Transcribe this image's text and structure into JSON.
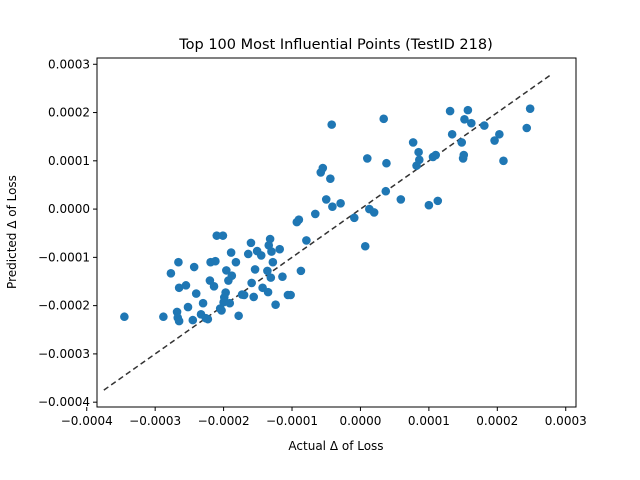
{
  "chart_data": {
    "type": "scatter",
    "title": "Top 100 Most Influential Points (TestID 218)",
    "xlabel": "Actual Δ of Loss",
    "ylabel": "Predicted Δ of Loss",
    "xlim": [
      -0.000385,
      0.000315
    ],
    "ylim": [
      -0.00041,
      0.000313
    ],
    "xticks": [
      -0.0004,
      -0.0003,
      -0.0002,
      -0.0001,
      0.0,
      0.0001,
      0.0002,
      0.0003
    ],
    "xtick_labels": [
      "−0.0004",
      "−0.0003",
      "−0.0002",
      "−0.0001",
      "0.0000",
      "0.0001",
      "0.0002",
      "0.0003"
    ],
    "yticks": [
      -0.0004,
      -0.0003,
      -0.0002,
      -0.0001,
      0.0,
      0.0001,
      0.0002,
      0.0003
    ],
    "ytick_labels": [
      "−0.0004",
      "−0.0003",
      "−0.0002",
      "−0.0001",
      "0.0000",
      "0.0001",
      "0.0002",
      "0.0003"
    ],
    "grid": false,
    "point_color": "#1f77b4",
    "reference_line": {
      "style": "dashed",
      "color": "#333333",
      "from": [
        -0.000375,
        -0.000375
      ],
      "to": [
        0.00028,
        0.00028
      ]
    },
    "points": [
      [
        -0.000345,
        -0.000223
      ],
      [
        -0.000288,
        -0.000223
      ],
      [
        -0.000277,
        -0.000133
      ],
      [
        -0.000268,
        -0.000213
      ],
      [
        -0.000267,
        -0.000225
      ],
      [
        -0.000265,
        -0.000232
      ],
      [
        -0.000266,
        -0.00011
      ],
      [
        -0.000265,
        -0.000163
      ],
      [
        -0.000255,
        -0.000158
      ],
      [
        -0.000252,
        -0.000203
      ],
      [
        -0.000245,
        -0.00023
      ],
      [
        -0.000243,
        -0.00012
      ],
      [
        -0.00024,
        -0.000175
      ],
      [
        -0.000233,
        -0.000218
      ],
      [
        -0.00023,
        -0.000195
      ],
      [
        -0.000226,
        -0.000226
      ],
      [
        -0.000223,
        -0.000228
      ],
      [
        -0.00022,
        -0.000148
      ],
      [
        -0.000219,
        -0.00011
      ],
      [
        -0.000214,
        -0.00016
      ],
      [
        -0.000212,
        -0.000108
      ],
      [
        -0.00021,
        -5.5e-05
      ],
      [
        -0.000205,
        -0.000206
      ],
      [
        -0.000201,
        -5.5e-05
      ],
      [
        -0.0002,
        -0.000193
      ],
      [
        -0.000199,
        -0.000183
      ],
      [
        -0.000197,
        -0.000173
      ],
      [
        -0.000196,
        -0.000127
      ],
      [
        -0.000193,
        -0.000148
      ],
      [
        -0.000191,
        -0.000195
      ],
      [
        -0.000189,
        -9e-05
      ],
      [
        -0.000188,
        -0.000138
      ],
      [
        -0.000182,
        -0.00011
      ],
      [
        -0.000178,
        -0.000221
      ],
      [
        -0.000173,
        -0.000177
      ],
      [
        -0.000164,
        -9.3e-05
      ],
      [
        -0.00016,
        -7e-05
      ],
      [
        -0.000159,
        -0.000153
      ],
      [
        -0.000156,
        -0.000182
      ],
      [
        -0.000154,
        -0.000125
      ],
      [
        -0.000151,
        -8.7e-05
      ],
      [
        -0.000145,
        -9.6e-05
      ],
      [
        -0.000143,
        -0.000163
      ],
      [
        -0.000136,
        -0.000128
      ],
      [
        -0.000135,
        -0.000172
      ],
      [
        -0.000134,
        -7.5e-05
      ],
      [
        -0.000132,
        -6.2e-05
      ],
      [
        -0.000131,
        -0.000142
      ],
      [
        -0.00013,
        -8.8e-05
      ],
      [
        -0.000128,
        -0.00011
      ],
      [
        -0.000124,
        -0.000198
      ],
      [
        -0.000118,
        -8.3e-05
      ],
      [
        -0.000114,
        -0.00014
      ],
      [
        -0.000106,
        -0.000178
      ],
      [
        -0.000102,
        -0.000178
      ],
      [
        -9.3e-05,
        -2.7e-05
      ],
      [
        -9e-05,
        -2.2e-05
      ],
      [
        -8.7e-05,
        -0.000128
      ],
      [
        -7.9e-05,
        -6.5e-05
      ],
      [
        -6.6e-05,
        -1e-05
      ],
      [
        -5.8e-05,
        7.6e-05
      ],
      [
        -5.5e-05,
        8.5e-05
      ],
      [
        -5e-05,
        2e-05
      ],
      [
        -4.4e-05,
        6.3e-05
      ],
      [
        -4.2e-05,
        0.000175
      ],
      [
        -4.1e-05,
        5e-06
      ],
      [
        -2.9e-05,
        1.2e-05
      ],
      [
        -9e-06,
        -1.8e-05
      ],
      [
        7e-06,
        -7.7e-05
      ],
      [
        1e-05,
        0.000105
      ],
      [
        1.3e-05,
        0.0
      ],
      [
        2e-05,
        -7e-06
      ],
      [
        3.4e-05,
        0.000187
      ],
      [
        3.7e-05,
        3.7e-05
      ],
      [
        3.8e-05,
        9.5e-05
      ],
      [
        5.9e-05,
        2e-05
      ],
      [
        7.7e-05,
        0.000138
      ],
      [
        8.2e-05,
        9e-05
      ],
      [
        8.5e-05,
        0.000118
      ],
      [
        8.6e-05,
        0.000102
      ],
      [
        0.0001,
        8e-06
      ],
      [
        0.000106,
        0.000108
      ],
      [
        0.00011,
        0.000112
      ],
      [
        0.000113,
        1.7e-05
      ],
      [
        0.000131,
        0.000203
      ],
      [
        0.000134,
        0.000155
      ],
      [
        0.000148,
        0.000138
      ],
      [
        0.00015,
        0.000105
      ],
      [
        0.000151,
        0.000112
      ],
      [
        0.000152,
        0.000186
      ],
      [
        0.000157,
        0.000205
      ],
      [
        0.000162,
        0.000178
      ],
      [
        0.000181,
        0.000173
      ],
      [
        0.000196,
        0.000142
      ],
      [
        0.000203,
        0.000155
      ],
      [
        0.000209,
        0.0001
      ],
      [
        0.000243,
        0.000168
      ],
      [
        0.000248,
        0.000208
      ],
      [
        -0.000203,
        -0.00021
      ],
      [
        -0.00017,
        -0.000178
      ]
    ]
  }
}
